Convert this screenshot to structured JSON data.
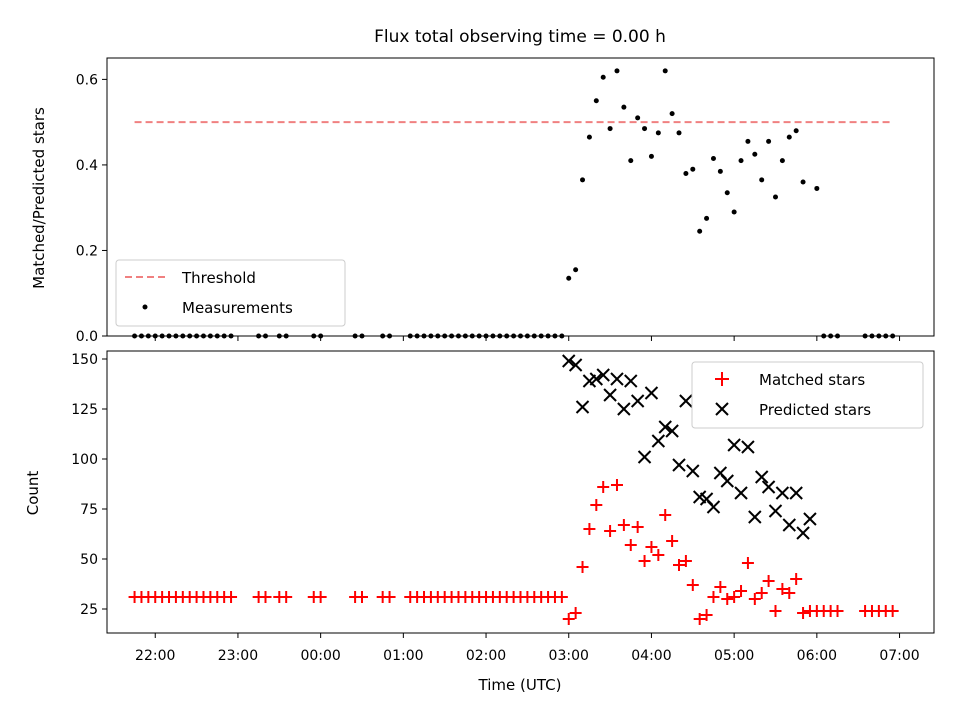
{
  "chart_data": [
    {
      "type": "scatter",
      "title": "Flux total observing time = 0.00 h",
      "xlabel": "",
      "ylabel": "Matched/Predicted stars",
      "ylim": [
        0,
        0.65
      ],
      "yticks": [
        "0.0",
        "0.2",
        "0.4",
        "0.6"
      ],
      "xlim": [
        "21:25",
        "07:25"
      ],
      "grid": false,
      "legend": {
        "placement": "lower-left",
        "entries": [
          "Threshold",
          "Measurements"
        ]
      },
      "threshold": {
        "name": "Threshold",
        "value": 0.5,
        "x_start": "21:45",
        "x_end": "06:55",
        "color": "#f08080"
      },
      "series": [
        {
          "name": "Measurements",
          "color": "#000000",
          "x": [
            "21:45",
            "21:50",
            "21:55",
            "22:00",
            "22:05",
            "22:10",
            "22:15",
            "22:20",
            "22:25",
            "22:30",
            "22:35",
            "22:40",
            "22:45",
            "22:50",
            "22:55",
            "23:15",
            "23:20",
            "23:30",
            "23:35",
            "23:55",
            "24:00",
            "24:25",
            "24:30",
            "24:45",
            "24:50",
            "25:05",
            "25:10",
            "25:15",
            "25:20",
            "25:25",
            "25:30",
            "25:35",
            "25:40",
            "25:45",
            "25:50",
            "25:55",
            "26:00",
            "26:05",
            "26:10",
            "26:15",
            "26:20",
            "26:25",
            "26:30",
            "26:35",
            "26:40",
            "26:45",
            "26:50",
            "26:55",
            "27:00",
            "27:05",
            "27:10",
            "27:15",
            "27:20",
            "27:25",
            "27:30",
            "27:35",
            "27:40",
            "27:45",
            "27:50",
            "27:55",
            "28:00",
            "28:05",
            "28:10",
            "28:15",
            "28:20",
            "28:25",
            "28:30",
            "28:35",
            "28:40",
            "28:45",
            "28:50",
            "28:55",
            "29:00",
            "29:05",
            "29:10",
            "29:15",
            "29:20",
            "29:25",
            "29:30",
            "29:35",
            "29:40",
            "29:45",
            "29:50",
            "30:00",
            "30:05",
            "30:10",
            "30:15",
            "30:35",
            "30:40",
            "30:45",
            "30:50",
            "30:55"
          ],
          "y": [
            0,
            0,
            0,
            0,
            0,
            0,
            0,
            0,
            0,
            0,
            0,
            0,
            0,
            0,
            0,
            0,
            0,
            0,
            0,
            0,
            0,
            0,
            0,
            0,
            0,
            0,
            0,
            0,
            0,
            0,
            0,
            0,
            0,
            0,
            0,
            0,
            0,
            0,
            0,
            0,
            0,
            0,
            0,
            0,
            0,
            0,
            0,
            0,
            0.135,
            0.155,
            0.365,
            0.465,
            0.55,
            0.605,
            0.485,
            0.62,
            0.535,
            0.41,
            0.51,
            0.485,
            0.42,
            0.475,
            0.62,
            0.52,
            0.475,
            0.38,
            0.39,
            0.245,
            0.275,
            0.415,
            0.385,
            0.335,
            0.29,
            0.41,
            0.455,
            0.425,
            0.365,
            0.455,
            0.325,
            0.41,
            0.465,
            0.48,
            0.36,
            0.345,
            0,
            0,
            0,
            0,
            0,
            0,
            0,
            0
          ]
        }
      ]
    },
    {
      "type": "scatter",
      "title": "",
      "xlabel": "Time (UTC)",
      "ylabel": "Count",
      "ylim": [
        13,
        154
      ],
      "yticks": [
        "25",
        "50",
        "75",
        "100",
        "125",
        "150"
      ],
      "xlim": [
        "21:25",
        "07:25"
      ],
      "xticks": [
        "22:00",
        "23:00",
        "00:00",
        "01:00",
        "02:00",
        "03:00",
        "04:00",
        "05:00",
        "06:00",
        "07:00"
      ],
      "grid": false,
      "legend": {
        "placement": "top-right",
        "entries": [
          "Matched stars",
          "Predicted stars"
        ]
      },
      "series": [
        {
          "name": "Matched stars",
          "marker": "+",
          "color": "#ff0000",
          "x": [
            "21:45",
            "21:50",
            "21:55",
            "22:00",
            "22:05",
            "22:10",
            "22:15",
            "22:20",
            "22:25",
            "22:30",
            "22:35",
            "22:40",
            "22:45",
            "22:50",
            "22:55",
            "23:15",
            "23:20",
            "23:30",
            "23:35",
            "23:55",
            "24:00",
            "24:25",
            "24:30",
            "24:45",
            "24:50",
            "25:05",
            "25:10",
            "25:15",
            "25:20",
            "25:25",
            "25:30",
            "25:35",
            "25:40",
            "25:45",
            "25:50",
            "25:55",
            "26:00",
            "26:05",
            "26:10",
            "26:15",
            "26:20",
            "26:25",
            "26:30",
            "26:35",
            "26:40",
            "26:45",
            "26:50",
            "26:55",
            "27:00",
            "27:05",
            "27:10",
            "27:15",
            "27:20",
            "27:25",
            "27:30",
            "27:35",
            "27:40",
            "27:45",
            "27:50",
            "27:55",
            "28:00",
            "28:05",
            "28:10",
            "28:15",
            "28:20",
            "28:25",
            "28:30",
            "28:35",
            "28:40",
            "28:45",
            "28:50",
            "28:55",
            "29:00",
            "29:05",
            "29:10",
            "29:15",
            "29:20",
            "29:25",
            "29:30",
            "29:35",
            "29:40",
            "29:45",
            "29:50",
            "29:55",
            "30:00",
            "30:05",
            "30:10",
            "30:15",
            "30:35",
            "30:40",
            "30:45",
            "30:50",
            "30:55"
          ],
          "y": [
            31,
            31,
            31,
            31,
            31,
            31,
            31,
            31,
            31,
            31,
            31,
            31,
            31,
            31,
            31,
            31,
            31,
            31,
            31,
            31,
            31,
            31,
            31,
            31,
            31,
            31,
            31,
            31,
            31,
            31,
            31,
            31,
            31,
            31,
            31,
            31,
            31,
            31,
            31,
            31,
            31,
            31,
            31,
            31,
            31,
            31,
            31,
            31,
            20,
            23,
            46,
            65,
            77,
            86,
            64,
            87,
            67,
            57,
            66,
            49,
            56,
            52,
            72,
            59,
            47,
            49,
            37,
            20,
            22,
            31,
            36,
            30,
            31,
            34,
            48,
            30,
            33,
            39,
            24,
            35,
            33,
            40,
            23,
            24,
            24,
            24,
            24,
            24,
            24,
            24,
            24,
            24,
            24
          ]
        },
        {
          "name": "Predicted stars",
          "marker": "x",
          "color": "#000000",
          "x": [
            "27:00",
            "27:05",
            "27:10",
            "27:15",
            "27:20",
            "27:25",
            "27:30",
            "27:35",
            "27:40",
            "27:45",
            "27:50",
            "27:55",
            "28:00",
            "28:05",
            "28:10",
            "28:15",
            "28:20",
            "28:25",
            "28:30",
            "28:35",
            "28:40",
            "28:45",
            "28:50",
            "28:55",
            "29:00",
            "29:05",
            "29:10",
            "29:15",
            "29:20",
            "29:25",
            "29:30",
            "29:35",
            "29:40",
            "29:45",
            "29:50",
            "29:55"
          ],
          "y": [
            149,
            147,
            126,
            139,
            140,
            142,
            132,
            140,
            125,
            139,
            129,
            101,
            133,
            109,
            116,
            114,
            97,
            129,
            94,
            81,
            80,
            76,
            93,
            89,
            107,
            83,
            106,
            71,
            91,
            86,
            74,
            83,
            67,
            83,
            63,
            70
          ]
        }
      ]
    }
  ]
}
